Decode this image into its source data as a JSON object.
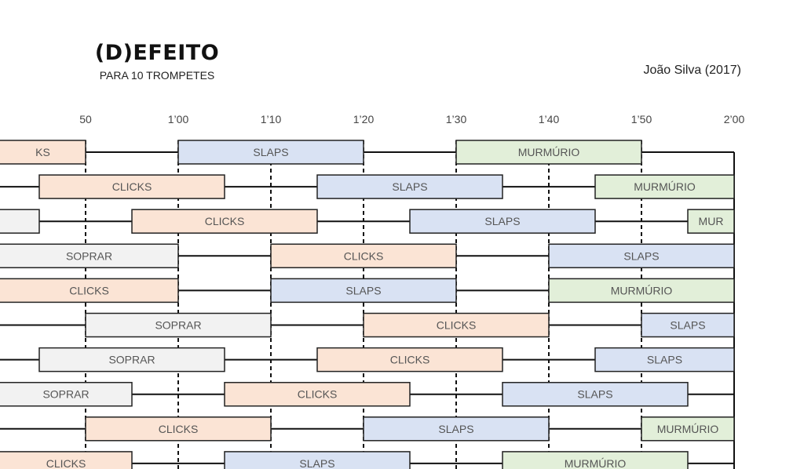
{
  "title": "(D)EFEITO",
  "subtitle": "PARA 10 TROMPETES",
  "composer": "João Silva (2017)",
  "timeline": {
    "ticks": [
      "50",
      "1’00",
      "1’10",
      "1’20",
      "1’30",
      "1’40",
      "1’50",
      "2’00"
    ],
    "tick_seconds": [
      50,
      60,
      70,
      80,
      90,
      100,
      110,
      120
    ]
  },
  "colors": {
    "CLICKS": "#fbe4d5",
    "SLAPS": "#d9e2f3",
    "MURMÚRIO": "#e2efd9",
    "SOPRAR": "#f2f2f2",
    "outline": "#222222",
    "line": "#111111"
  },
  "staves": [
    {
      "blocks": [
        {
          "label": "CLICKS",
          "text": "KS",
          "start": 40,
          "end": 50
        },
        {
          "label": "SLAPS",
          "text": "SLAPS",
          "start": 60,
          "end": 80
        },
        {
          "label": "MURMÚRIO",
          "text": "MURMÚRIO",
          "start": 90,
          "end": 110
        }
      ]
    },
    {
      "blocks": [
        {
          "label": "CLICKS",
          "text": "CLICKS",
          "start": 45,
          "end": 65
        },
        {
          "label": "SLAPS",
          "text": "SLAPS",
          "start": 75,
          "end": 95
        },
        {
          "label": "MURMÚRIO",
          "text": "MURMÚRIO",
          "start": 105,
          "end": 120
        }
      ]
    },
    {
      "blocks": [
        {
          "label": "SOPRAR",
          "text": "",
          "start": 40,
          "end": 45
        },
        {
          "label": "CLICKS",
          "text": "CLICKS",
          "start": 55,
          "end": 75
        },
        {
          "label": "SLAPS",
          "text": "SLAPS",
          "start": 85,
          "end": 105
        },
        {
          "label": "MURMÚRIO",
          "text": "MUR",
          "start": 115,
          "end": 120
        }
      ]
    },
    {
      "blocks": [
        {
          "label": "SOPRAR",
          "text": "SOPRAR",
          "start": 40,
          "end": 60
        },
        {
          "label": "CLICKS",
          "text": "CLICKS",
          "start": 70,
          "end": 90
        },
        {
          "label": "SLAPS",
          "text": "SLAPS",
          "start": 100,
          "end": 120
        }
      ]
    },
    {
      "blocks": [
        {
          "label": "CLICKS",
          "text": "CLICKS",
          "start": 40,
          "end": 60
        },
        {
          "label": "SLAPS",
          "text": "SLAPS",
          "start": 70,
          "end": 90
        },
        {
          "label": "MURMÚRIO",
          "text": "MURMÚRIO",
          "start": 100,
          "end": 120
        }
      ]
    },
    {
      "blocks": [
        {
          "label": "SOPRAR",
          "text": "SOPRAR",
          "start": 50,
          "end": 70
        },
        {
          "label": "CLICKS",
          "text": "CLICKS",
          "start": 80,
          "end": 100
        },
        {
          "label": "SLAPS",
          "text": "SLAPS",
          "start": 110,
          "end": 120
        }
      ]
    },
    {
      "blocks": [
        {
          "label": "SOPRAR",
          "text": "SOPRAR",
          "start": 45,
          "end": 65
        },
        {
          "label": "CLICKS",
          "text": "CLICKS",
          "start": 75,
          "end": 95
        },
        {
          "label": "SLAPS",
          "text": "SLAPS",
          "start": 105,
          "end": 120
        }
      ]
    },
    {
      "blocks": [
        {
          "label": "SOPRAR",
          "text": "SOPRAR",
          "start": 40,
          "end": 55
        },
        {
          "label": "CLICKS",
          "text": "CLICKS",
          "start": 65,
          "end": 85
        },
        {
          "label": "SLAPS",
          "text": "SLAPS",
          "start": 95,
          "end": 115
        }
      ]
    },
    {
      "blocks": [
        {
          "label": "CLICKS",
          "text": "CLICKS",
          "start": 50,
          "end": 70
        },
        {
          "label": "SLAPS",
          "text": "SLAPS",
          "start": 80,
          "end": 100
        },
        {
          "label": "MURMÚRIO",
          "text": "MURMÚRIO",
          "start": 110,
          "end": 120
        }
      ]
    },
    {
      "blocks": [
        {
          "label": "CLICKS",
          "text": "CLICKS",
          "start": 40,
          "end": 55
        },
        {
          "label": "SLAPS",
          "text": "SLAPS",
          "start": 65,
          "end": 85
        },
        {
          "label": "MURMÚRIO",
          "text": "MURMÚRIO",
          "start": 95,
          "end": 115
        }
      ]
    }
  ]
}
